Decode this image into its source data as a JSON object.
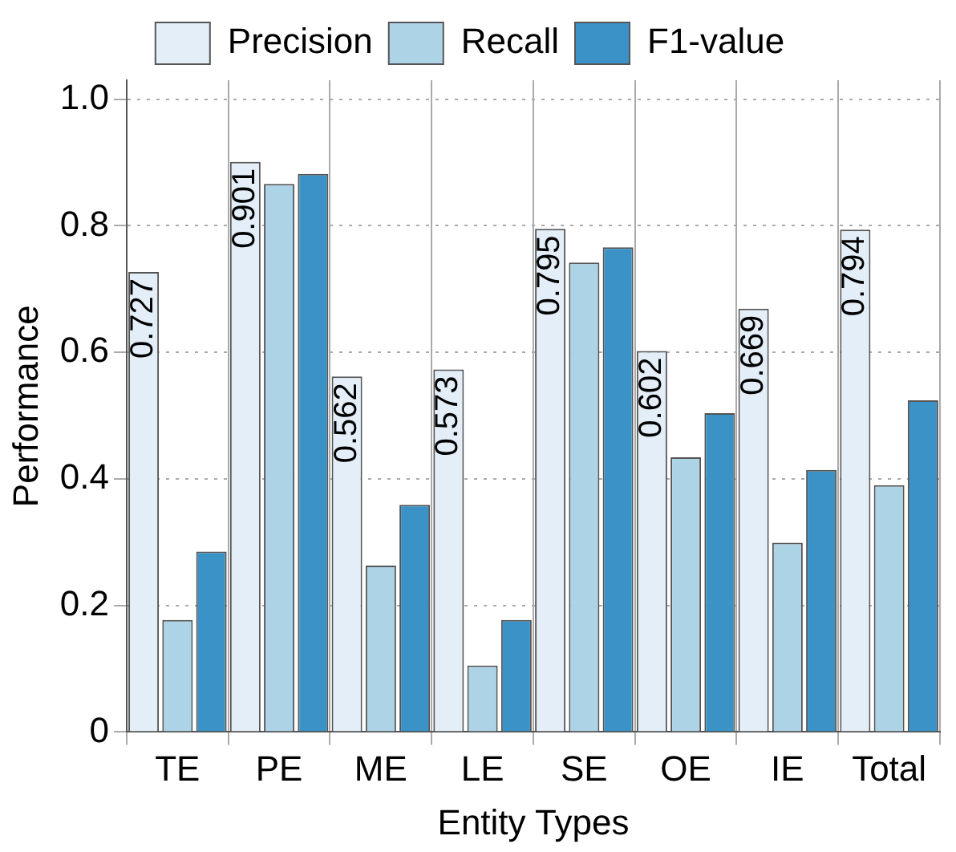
{
  "chart_data": {
    "type": "bar",
    "xlabel": "Entity Types",
    "ylabel": "Performance",
    "categories": [
      "TE",
      "PE",
      "ME",
      "LE",
      "SE",
      "OE",
      "IE",
      "Total"
    ],
    "series": [
      {
        "name": "Precision",
        "color": "#e3eef8",
        "values": [
          0.727,
          0.901,
          0.562,
          0.573,
          0.795,
          0.602,
          0.669,
          0.794
        ],
        "value_labels": [
          "0.727",
          "0.901",
          "0.562",
          "0.573",
          "0.795",
          "0.602",
          "0.669",
          "0.794"
        ]
      },
      {
        "name": "Recall",
        "color": "#acd3e6",
        "values": [
          0.177,
          0.866,
          0.263,
          0.105,
          0.742,
          0.434,
          0.299,
          0.39
        ]
      },
      {
        "name": "F1-value",
        "color": "#3a92c6",
        "values": [
          0.285,
          0.882,
          0.359,
          0.177,
          0.766,
          0.504,
          0.414,
          0.524
        ]
      }
    ],
    "ylim": [
      0,
      1.03
    ],
    "yticks": [
      0,
      0.2,
      0.4,
      0.6,
      0.8,
      {
        "value": 1.0,
        "label": "1.0"
      }
    ],
    "grid": true,
    "legend": "top"
  }
}
